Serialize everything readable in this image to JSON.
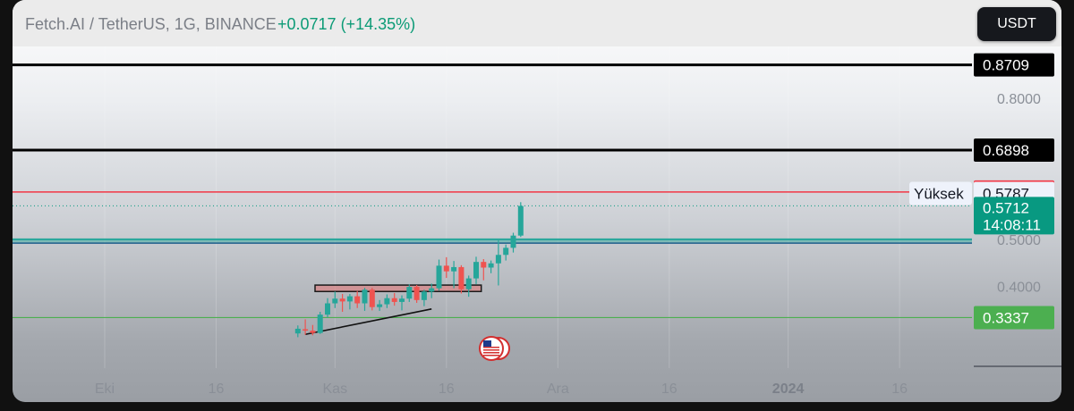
{
  "header": {
    "symbol": "Fetch.AI / TetherUS, 1G, BINANCE",
    "change": "+0.0717 (+14.35%)",
    "currency_button": "USDT"
  },
  "colors": {
    "up": "#26a69a",
    "down": "#ef5350",
    "level_black": "#000000",
    "level_red": "#f23645",
    "level_green": "#4caf50",
    "zone_teal": "#26a69a",
    "last_price": "#089981"
  },
  "chart_data": {
    "type": "candlestick",
    "ylim": [
      0.27,
      0.91
    ],
    "x_ticks": [
      {
        "label": "Eki",
        "day": -30,
        "bold": false
      },
      {
        "label": "16",
        "day": -15,
        "bold": false
      },
      {
        "label": "Kas",
        "day": 1,
        "bold": false
      },
      {
        "label": "16",
        "day": 16,
        "bold": false
      },
      {
        "label": "Ara",
        "day": 31,
        "bold": false
      },
      {
        "label": "16",
        "day": 46,
        "bold": false
      },
      {
        "label": "2024",
        "day": 62,
        "bold": true
      },
      {
        "label": "16",
        "day": 77,
        "bold": false
      }
    ],
    "y_ticks": [
      "0.8000",
      "0.5000",
      "0.4000"
    ],
    "levels": [
      {
        "name": "black-level-top",
        "price": "0.8709",
        "value": 0.8709,
        "kind": "black"
      },
      {
        "name": "black-level",
        "price": "0.6898",
        "value": 0.6898,
        "kind": "black"
      },
      {
        "name": "red-level",
        "price": "0.6008",
        "value": 0.6008,
        "kind": "red"
      },
      {
        "name": "green-level",
        "price": "0.3337",
        "value": 0.3337,
        "kind": "green"
      }
    ],
    "high_marker": {
      "label": "Yüksek",
      "price": "0.5787",
      "value": 0.5787
    },
    "last_price": {
      "price": "0.5712",
      "countdown": "14:08:11",
      "value": 0.5712
    },
    "support_zone": [
      0.492,
      0.5
    ],
    "resistance_box": {
      "from_day": 0,
      "to_day": 19,
      "low": 0.393,
      "high": 0.399
    },
    "trendline": {
      "from": {
        "day": -3,
        "value": 0.298
      },
      "to": {
        "day": 14,
        "value": 0.352
      }
    },
    "candles": [
      {
        "day": -4,
        "o": 0.3,
        "h": 0.317,
        "l": 0.292,
        "c": 0.31
      },
      {
        "day": -3,
        "o": 0.309,
        "h": 0.33,
        "l": 0.297,
        "c": 0.306
      },
      {
        "day": -2,
        "o": 0.306,
        "h": 0.318,
        "l": 0.296,
        "c": 0.301
      },
      {
        "day": -1,
        "o": 0.301,
        "h": 0.346,
        "l": 0.299,
        "c": 0.34
      },
      {
        "day": 0,
        "o": 0.34,
        "h": 0.375,
        "l": 0.334,
        "c": 0.364
      },
      {
        "day": 1,
        "o": 0.364,
        "h": 0.389,
        "l": 0.354,
        "c": 0.374
      },
      {
        "day": 2,
        "o": 0.374,
        "h": 0.384,
        "l": 0.346,
        "c": 0.368
      },
      {
        "day": 3,
        "o": 0.368,
        "h": 0.384,
        "l": 0.351,
        "c": 0.379
      },
      {
        "day": 4,
        "o": 0.379,
        "h": 0.39,
        "l": 0.354,
        "c": 0.364
      },
      {
        "day": 5,
        "o": 0.364,
        "h": 0.397,
        "l": 0.348,
        "c": 0.393
      },
      {
        "day": 6,
        "o": 0.393,
        "h": 0.397,
        "l": 0.349,
        "c": 0.356
      },
      {
        "day": 7,
        "o": 0.356,
        "h": 0.371,
        "l": 0.348,
        "c": 0.362
      },
      {
        "day": 8,
        "o": 0.362,
        "h": 0.383,
        "l": 0.354,
        "c": 0.375
      },
      {
        "day": 9,
        "o": 0.375,
        "h": 0.386,
        "l": 0.359,
        "c": 0.367
      },
      {
        "day": 10,
        "o": 0.367,
        "h": 0.381,
        "l": 0.349,
        "c": 0.374
      },
      {
        "day": 11,
        "o": 0.374,
        "h": 0.404,
        "l": 0.367,
        "c": 0.399
      },
      {
        "day": 12,
        "o": 0.399,
        "h": 0.403,
        "l": 0.365,
        "c": 0.371
      },
      {
        "day": 13,
        "o": 0.371,
        "h": 0.393,
        "l": 0.358,
        "c": 0.389
      },
      {
        "day": 14,
        "o": 0.389,
        "h": 0.406,
        "l": 0.375,
        "c": 0.396
      },
      {
        "day": 15,
        "o": 0.396,
        "h": 0.457,
        "l": 0.391,
        "c": 0.444
      },
      {
        "day": 16,
        "o": 0.444,
        "h": 0.462,
        "l": 0.418,
        "c": 0.432
      },
      {
        "day": 17,
        "o": 0.432,
        "h": 0.454,
        "l": 0.396,
        "c": 0.441
      },
      {
        "day": 18,
        "o": 0.441,
        "h": 0.445,
        "l": 0.385,
        "c": 0.394
      },
      {
        "day": 19,
        "o": 0.394,
        "h": 0.423,
        "l": 0.378,
        "c": 0.417
      },
      {
        "day": 20,
        "o": 0.417,
        "h": 0.463,
        "l": 0.405,
        "c": 0.452
      },
      {
        "day": 21,
        "o": 0.452,
        "h": 0.458,
        "l": 0.413,
        "c": 0.44
      },
      {
        "day": 22,
        "o": 0.44,
        "h": 0.455,
        "l": 0.428,
        "c": 0.449
      },
      {
        "day": 23,
        "o": 0.449,
        "h": 0.498,
        "l": 0.402,
        "c": 0.467
      },
      {
        "day": 24,
        "o": 0.467,
        "h": 0.489,
        "l": 0.455,
        "c": 0.482
      },
      {
        "day": 25,
        "o": 0.482,
        "h": 0.514,
        "l": 0.472,
        "c": 0.508
      },
      {
        "day": 26,
        "o": 0.508,
        "h": 0.579,
        "l": 0.505,
        "c": 0.571
      }
    ]
  }
}
